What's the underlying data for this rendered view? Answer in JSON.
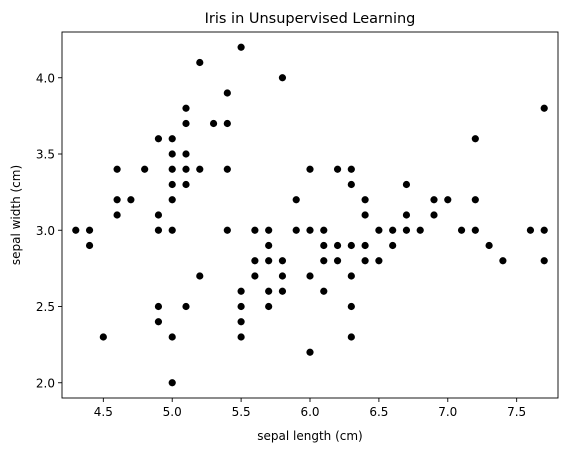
{
  "chart_data": {
    "type": "scatter",
    "title": "Iris in Unsupervised Learning",
    "xlabel": "sepal length (cm)",
    "ylabel": "sepal width (cm)",
    "xlim": [
      4.2,
      7.8
    ],
    "ylim": [
      1.9,
      4.3
    ],
    "xticks": [
      4.5,
      5.0,
      5.5,
      6.0,
      6.5,
      7.0,
      7.5
    ],
    "xtick_labels": [
      "4.5",
      "5.0",
      "5.5",
      "6.0",
      "6.5",
      "7.0",
      "7.5"
    ],
    "yticks": [
      2.0,
      2.5,
      3.0,
      3.5,
      4.0
    ],
    "ytick_labels": [
      "2.0",
      "2.5",
      "3.0",
      "3.5",
      "4.0"
    ],
    "grid": false,
    "marker_color": "#000000",
    "points": [
      [
        4.3,
        3.0
      ],
      [
        4.4,
        3.0
      ],
      [
        4.4,
        2.9
      ],
      [
        4.5,
        2.3
      ],
      [
        4.6,
        3.4
      ],
      [
        4.6,
        3.2
      ],
      [
        4.6,
        3.1
      ],
      [
        4.7,
        3.2
      ],
      [
        4.8,
        3.4
      ],
      [
        4.9,
        3.6
      ],
      [
        4.9,
        3.1
      ],
      [
        4.9,
        3.0
      ],
      [
        4.9,
        2.5
      ],
      [
        4.9,
        2.4
      ],
      [
        5.0,
        3.6
      ],
      [
        5.0,
        3.5
      ],
      [
        5.0,
        3.4
      ],
      [
        5.0,
        3.3
      ],
      [
        5.0,
        3.2
      ],
      [
        5.0,
        3.0
      ],
      [
        5.0,
        2.3
      ],
      [
        5.0,
        2.0
      ],
      [
        5.1,
        3.8
      ],
      [
        5.1,
        3.7
      ],
      [
        5.1,
        3.5
      ],
      [
        5.1,
        3.4
      ],
      [
        5.1,
        3.3
      ],
      [
        5.1,
        2.5
      ],
      [
        5.2,
        4.1
      ],
      [
        5.2,
        3.4
      ],
      [
        5.2,
        2.7
      ],
      [
        5.3,
        3.7
      ],
      [
        5.4,
        3.9
      ],
      [
        5.4,
        3.7
      ],
      [
        5.4,
        3.4
      ],
      [
        5.4,
        3.0
      ],
      [
        5.5,
        4.2
      ],
      [
        5.5,
        2.6
      ],
      [
        5.5,
        2.5
      ],
      [
        5.5,
        2.4
      ],
      [
        5.5,
        2.3
      ],
      [
        5.6,
        3.0
      ],
      [
        5.6,
        2.8
      ],
      [
        5.6,
        2.7
      ],
      [
        5.7,
        3.0
      ],
      [
        5.7,
        2.9
      ],
      [
        5.7,
        2.8
      ],
      [
        5.7,
        2.6
      ],
      [
        5.7,
        2.5
      ],
      [
        5.8,
        4.0
      ],
      [
        5.8,
        2.8
      ],
      [
        5.8,
        2.7
      ],
      [
        5.8,
        2.6
      ],
      [
        5.9,
        3.2
      ],
      [
        5.9,
        3.0
      ],
      [
        6.0,
        3.4
      ],
      [
        6.0,
        3.0
      ],
      [
        6.0,
        2.7
      ],
      [
        6.0,
        2.2
      ],
      [
        6.1,
        3.0
      ],
      [
        6.1,
        2.9
      ],
      [
        6.1,
        2.8
      ],
      [
        6.1,
        2.6
      ],
      [
        6.2,
        3.4
      ],
      [
        6.2,
        2.9
      ],
      [
        6.2,
        2.8
      ],
      [
        6.3,
        3.4
      ],
      [
        6.3,
        3.3
      ],
      [
        6.3,
        2.9
      ],
      [
        6.3,
        2.7
      ],
      [
        6.3,
        2.5
      ],
      [
        6.3,
        2.3
      ],
      [
        6.4,
        3.2
      ],
      [
        6.4,
        3.1
      ],
      [
        6.4,
        2.9
      ],
      [
        6.4,
        2.8
      ],
      [
        6.5,
        3.0
      ],
      [
        6.5,
        2.8
      ],
      [
        6.6,
        3.0
      ],
      [
        6.6,
        2.9
      ],
      [
        6.7,
        3.3
      ],
      [
        6.7,
        3.1
      ],
      [
        6.7,
        3.0
      ],
      [
        6.8,
        3.0
      ],
      [
        6.9,
        3.2
      ],
      [
        6.9,
        3.1
      ],
      [
        7.0,
        3.2
      ],
      [
        7.1,
        3.0
      ],
      [
        7.2,
        3.6
      ],
      [
        7.2,
        3.2
      ],
      [
        7.2,
        3.0
      ],
      [
        7.3,
        2.9
      ],
      [
        7.4,
        2.8
      ],
      [
        7.6,
        3.0
      ],
      [
        7.7,
        3.8
      ],
      [
        7.7,
        3.0
      ],
      [
        7.7,
        2.8
      ]
    ]
  }
}
